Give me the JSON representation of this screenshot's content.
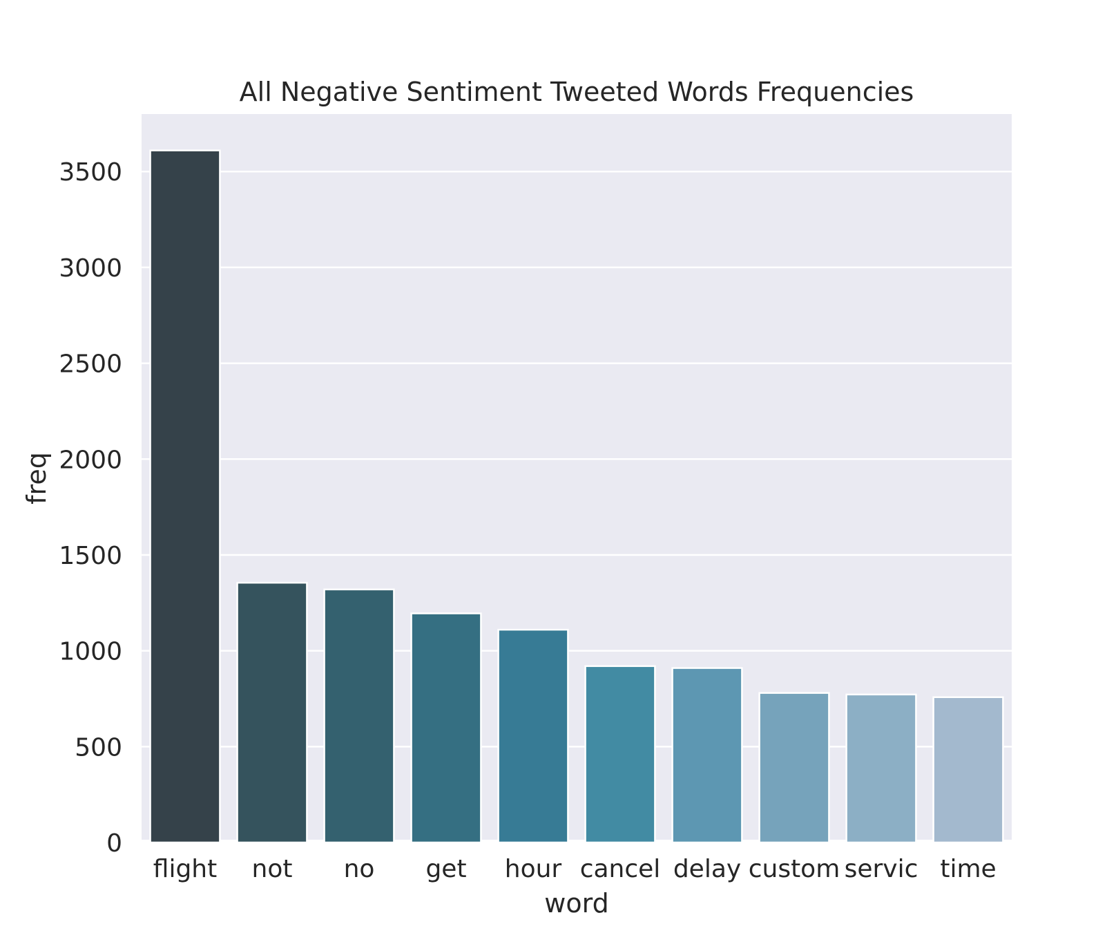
{
  "chart_data": {
    "type": "bar",
    "title": "All Negative Sentiment Tweeted Words Frequencies",
    "xlabel": "word",
    "ylabel": "freq",
    "categories": [
      "flight",
      "not",
      "no",
      "get",
      "hour",
      "cancel",
      "delay",
      "custom",
      "servic",
      "time"
    ],
    "values": [
      3610,
      1355,
      1320,
      1195,
      1110,
      920,
      910,
      780,
      772,
      758
    ],
    "ylim": [
      0,
      3800
    ],
    "yticks": [
      0,
      500,
      1000,
      1500,
      2000,
      2500,
      3000,
      3500
    ],
    "grid": true,
    "colors": [
      "#35424a",
      "#35535d",
      "#34616f",
      "#356f82",
      "#377b95",
      "#428ba3",
      "#5d97b2",
      "#76a3bb",
      "#8cafc5",
      "#a3b9ce"
    ],
    "plot_background": "#eaeaf2"
  }
}
